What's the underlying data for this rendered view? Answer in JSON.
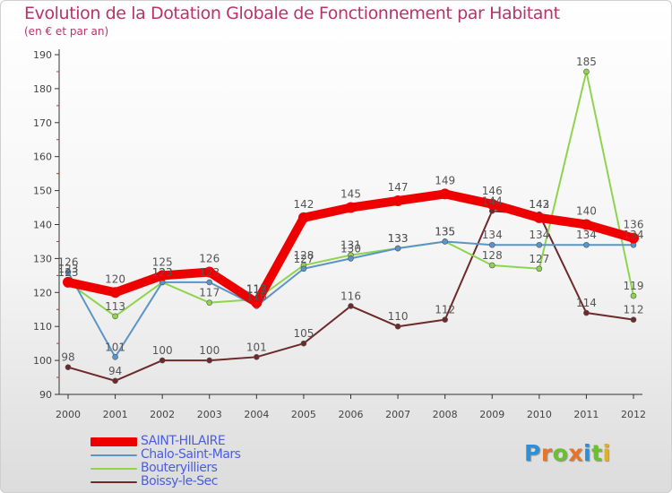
{
  "header": {
    "title": "Evolution de la Dotation Globale de Fonctionnement par Habitant",
    "subtitle": "(en € et par an)"
  },
  "logo": {
    "text": "Proxiti",
    "letters": [
      {
        "char": "P",
        "color": "#2d8fd8"
      },
      {
        "char": "r",
        "color": "#e8742a"
      },
      {
        "char": "o",
        "color": "#6cbf2e"
      },
      {
        "char": "x",
        "color": "#e8742a"
      },
      {
        "char": "i",
        "color": "#2d8fd8"
      },
      {
        "char": "t",
        "color": "#6cbf2e"
      },
      {
        "char": "i",
        "color": "#e0b020"
      }
    ]
  },
  "chart_data": {
    "type": "line",
    "title": "Evolution de la Dotation Globale de Fonctionnement par Habitant",
    "subtitle": "(en € et par an)",
    "xlabel": "",
    "ylabel": "",
    "x": [
      "2000",
      "2001",
      "2002",
      "2003",
      "2004",
      "2005",
      "2006",
      "2007",
      "2008",
      "2009",
      "2010",
      "2011",
      "2012"
    ],
    "ylim": [
      90,
      190
    ],
    "yticks": [
      90,
      100,
      110,
      120,
      130,
      140,
      150,
      160,
      170,
      180,
      190
    ],
    "grid": false,
    "legend": "bottom-left",
    "series": [
      {
        "name": "SAINT-HILAIRE",
        "color": "#ee0000",
        "width": 10,
        "values": [
          123,
          120,
          125,
          126,
          117,
          142,
          145,
          147,
          149,
          146,
          142,
          140,
          136
        ]
      },
      {
        "name": "Chalo-Saint-Mars",
        "color": "#5b95c8",
        "width": 2,
        "values": [
          126,
          101,
          123,
          123,
          116,
          127,
          130,
          133,
          135,
          134,
          134,
          134,
          134
        ]
      },
      {
        "name": "Bouteryilliers",
        "color": "#8fd44e",
        "width": 2,
        "values": [
          123,
          113,
          123,
          117,
          118,
          128,
          131,
          133,
          135,
          128,
          127,
          185,
          119
        ]
      },
      {
        "name": "Boissy-le-Sec",
        "color": "#6e2a2a",
        "width": 2,
        "values": [
          98,
          94,
          100,
          100,
          101,
          105,
          116,
          110,
          112,
          144,
          143,
          114,
          112
        ]
      }
    ]
  }
}
